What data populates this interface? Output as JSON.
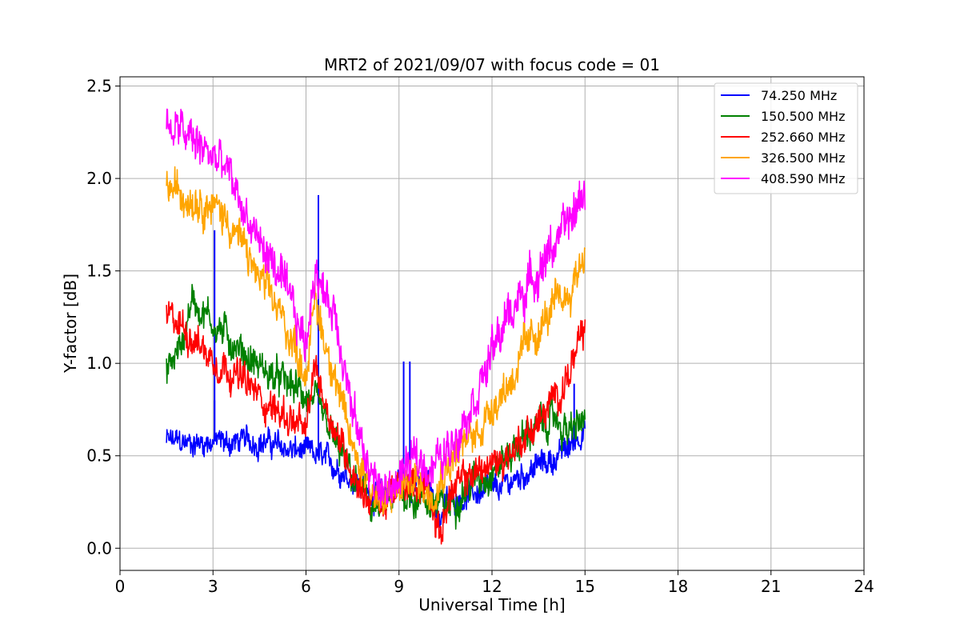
{
  "chart_data": {
    "type": "line",
    "title": "MRT2 of 2021/09/07 with focus code = 01",
    "xlabel": "Universal Time [h]",
    "ylabel": "Y-factor [dB]",
    "xlim": [
      0,
      24
    ],
    "ylim": [
      -0.12,
      2.55
    ],
    "xticks": [
      0,
      3,
      6,
      9,
      12,
      15,
      18,
      21,
      24
    ],
    "xtick_labels": [
      "0",
      "3",
      "6",
      "9",
      "12",
      "15",
      "18",
      "21",
      "24"
    ],
    "yticks": [
      0.0,
      0.5,
      1.0,
      1.5,
      2.0,
      2.5
    ],
    "ytick_labels": [
      "0.0",
      "0.5",
      "1.0",
      "1.5",
      "2.0",
      "2.5"
    ],
    "grid": true,
    "legend_position": "top-right",
    "series": [
      {
        "name": " 74.250 MHz",
        "color": "#0000ff",
        "noise": 0.06,
        "x": [
          1.5,
          2.0,
          2.5,
          3.0,
          3.5,
          4.0,
          4.5,
          5.0,
          5.5,
          6.0,
          6.3,
          6.6,
          7.0,
          7.5,
          8.0,
          8.5,
          9.0,
          9.5,
          10.0,
          10.3,
          10.5,
          11.0,
          11.5,
          12.0,
          12.5,
          13.0,
          13.5,
          14.0,
          14.5,
          15.0
        ],
        "y": [
          0.58,
          0.57,
          0.57,
          0.58,
          0.57,
          0.58,
          0.58,
          0.56,
          0.53,
          0.52,
          0.5,
          0.48,
          0.44,
          0.38,
          0.3,
          0.28,
          0.38,
          0.36,
          0.34,
          0.15,
          0.24,
          0.28,
          0.3,
          0.3,
          0.35,
          0.4,
          0.45,
          0.48,
          0.55,
          0.65
        ],
        "spikes": [
          {
            "x": 3.05,
            "y": 1.72
          },
          {
            "x": 3.05,
            "y": 0.8
          },
          {
            "x": 6.4,
            "y": 1.91
          },
          {
            "x": 9.15,
            "y": 1.01
          },
          {
            "x": 9.35,
            "y": 1.01
          },
          {
            "x": 14.65,
            "y": 0.89
          }
        ]
      },
      {
        "name": "150.500 MHz",
        "color": "#008000",
        "noise": 0.08,
        "x": [
          1.5,
          2.0,
          2.3,
          2.7,
          3.0,
          3.5,
          4.0,
          4.5,
          5.0,
          5.5,
          6.0,
          6.5,
          7.0,
          7.5,
          8.0,
          8.5,
          9.0,
          9.5,
          10.0,
          10.5,
          11.0,
          11.5,
          12.0,
          12.5,
          13.0,
          13.5,
          14.0,
          14.5,
          15.0
        ],
        "y": [
          0.95,
          1.1,
          1.35,
          1.28,
          1.22,
          1.14,
          1.05,
          0.98,
          0.92,
          0.88,
          0.82,
          0.72,
          0.55,
          0.38,
          0.25,
          0.2,
          0.3,
          0.28,
          0.25,
          0.22,
          0.3,
          0.38,
          0.42,
          0.5,
          0.6,
          0.66,
          0.7,
          0.62,
          0.7
        ]
      },
      {
        "name": "252.660 MHz",
        "color": "#ff0000",
        "noise": 0.08,
        "x": [
          1.5,
          2.0,
          2.5,
          3.0,
          3.5,
          4.0,
          4.5,
          5.0,
          5.5,
          6.0,
          6.3,
          6.6,
          7.0,
          7.5,
          8.0,
          8.5,
          9.0,
          9.5,
          10.0,
          10.3,
          10.6,
          11.0,
          11.5,
          12.0,
          12.5,
          13.0,
          13.5,
          14.0,
          14.5,
          15.0
        ],
        "y": [
          1.25,
          1.2,
          1.12,
          1.02,
          0.98,
          0.9,
          0.82,
          0.75,
          0.7,
          0.62,
          1.0,
          0.8,
          0.62,
          0.42,
          0.27,
          0.24,
          0.32,
          0.35,
          0.34,
          0.05,
          0.28,
          0.35,
          0.42,
          0.45,
          0.5,
          0.6,
          0.68,
          0.8,
          0.95,
          1.18
        ]
      },
      {
        "name": "326.500 MHz",
        "color": "#ffa500",
        "noise": 0.09,
        "x": [
          1.5,
          2.0,
          2.5,
          3.0,
          3.5,
          4.0,
          4.5,
          5.0,
          5.5,
          6.0,
          6.3,
          6.6,
          6.9,
          7.2,
          7.5,
          8.0,
          8.5,
          9.0,
          9.5,
          10.0,
          10.5,
          11.0,
          11.5,
          12.0,
          12.5,
          13.0,
          13.5,
          14.0,
          14.5,
          15.0
        ],
        "y": [
          1.95,
          1.92,
          1.9,
          1.85,
          1.78,
          1.62,
          1.45,
          1.32,
          1.15,
          0.95,
          1.35,
          1.12,
          0.98,
          0.72,
          0.55,
          0.38,
          0.22,
          0.32,
          0.38,
          0.3,
          0.45,
          0.55,
          0.62,
          0.78,
          0.88,
          1.05,
          1.18,
          1.3,
          1.38,
          1.62
        ]
      },
      {
        "name": "408.590 MHz",
        "color": "#ff00ff",
        "noise": 0.1,
        "x": [
          1.5,
          2.0,
          2.5,
          3.0,
          3.5,
          4.0,
          4.5,
          5.0,
          5.5,
          6.0,
          6.3,
          6.6,
          6.9,
          7.2,
          7.5,
          8.0,
          8.5,
          9.0,
          9.5,
          10.0,
          10.5,
          11.0,
          11.5,
          12.0,
          12.5,
          13.0,
          13.5,
          14.0,
          14.5,
          15.0
        ],
        "y": [
          2.28,
          2.25,
          2.18,
          2.12,
          2.02,
          1.82,
          1.65,
          1.52,
          1.32,
          1.1,
          1.55,
          1.35,
          1.3,
          1.05,
          0.72,
          0.45,
          0.28,
          0.38,
          0.48,
          0.45,
          0.5,
          0.68,
          0.85,
          1.05,
          1.25,
          1.38,
          1.5,
          1.65,
          1.75,
          1.95
        ]
      }
    ]
  }
}
